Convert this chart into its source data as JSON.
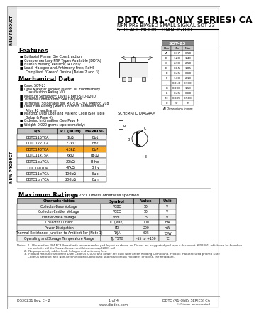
{
  "title_main": "DDTC (R1-ONLY SERIES) CA",
  "title_sub1": "NPN PRE-BIASED SMALL SIGNAL SOT-23",
  "title_sub2": "SURFACE MOUNT TRANSISTOR",
  "bg_color": "#ffffff",
  "side_label": "NEW PRODUCT",
  "features_title": "Features",
  "features": [
    "Epitaxial Planar Die Construction",
    "Complementary PNP Types Available (DDTA)",
    "Built-In Biasing Resistor, R1 only",
    "Lead, Halogen and Antimony Free; RoHS\n    Compliant \"Green\" Device (Notes 2 and 3)"
  ],
  "mech_title": "Mechanical Data",
  "mech_items": [
    "Case: SOT-23",
    "Case Material: Molded Plastic. UL Flammability\n    Classification Rating V-0",
    "Moisture Sensitivity: Level 1 per J-STD-020D",
    "Terminal Connections: See Diagram",
    "Terminals: Solderable per MIL-STD-202, Method 208",
    "Lead Free Plating (Matte Tin Finish annealed over\n    Alloy 42 leadframe)",
    "Marking: Date Code and Marking Code (See Table\n    Below & Page 4)",
    "Ordering Information (See Page 4)",
    "Weight: 0.020 grams (approximately)"
  ],
  "table_headers": [
    "P/N",
    "R1 (NOM)",
    "MARKING"
  ],
  "table_rows": [
    [
      "DDTC115TCA",
      "1kΩ",
      "Bb1"
    ],
    [
      "DDTC122TCA",
      "2.2kΩ",
      "Bb2"
    ],
    [
      "DDTC143TCA",
      "4.3kΩ",
      "Bb7"
    ],
    [
      "DDTC11x75A",
      "6kΩ",
      "Bb12"
    ],
    [
      "DDTC1bu7CA",
      "20kΩ",
      "B hb"
    ],
    [
      "DDTC1au7QA",
      "47kΩ",
      "B hy"
    ],
    [
      "DDTC11b7CA",
      "100kΩ",
      "Bub"
    ],
    [
      "DDTC1uh7CA",
      "200kΩ",
      "Buh"
    ]
  ],
  "highlight_row": 2,
  "sot23_table_title": "SOT-23",
  "sot23_dims": [
    [
      "Dim",
      "Min",
      "Max"
    ],
    [
      "A",
      "0.37",
      "0.50"
    ],
    [
      "B",
      "1.20",
      "1.40"
    ],
    [
      "C",
      "2.10",
      "2.50"
    ],
    [
      "D",
      "0.65",
      "1.05"
    ],
    [
      "E",
      "0.45",
      "0.60"
    ],
    [
      "F",
      "1.70",
      "2.10"
    ],
    [
      "J",
      "0.013",
      "0.100"
    ],
    [
      "K",
      "0.900",
      "1.10"
    ],
    [
      "L",
      "0.45",
      "0.60"
    ],
    [
      "M",
      "0.085",
      "0.580"
    ],
    [
      "e",
      "5°",
      "8°"
    ]
  ],
  "note_dims": "All Dimensions in mm",
  "max_ratings_title": "Maximum Ratings",
  "max_ratings_note": "@TA = 25°C unless otherwise specified",
  "max_ratings_headers": [
    "Characteristics",
    "Symbol",
    "Value",
    "Unit"
  ],
  "max_ratings_rows": [
    [
      "Collector-Base Voltage",
      "VCBO",
      "50",
      "V"
    ],
    [
      "Collector-Emitter Voltage",
      "VCEO",
      "50",
      "V"
    ],
    [
      "Emitter-Base Voltage",
      "VEBO",
      "5",
      "V"
    ],
    [
      "Collector Current",
      "IC (Max)",
      "100",
      "mA"
    ],
    [
      "Power Dissipation",
      "PD",
      "200",
      "mW"
    ],
    [
      "Thermal Resistance: Junction to Ambient Per (Note 1)",
      "RθJA",
      "625",
      "°C/W"
    ],
    [
      "Operating and Storage Temperature Range",
      "TJ, TSTG",
      "-55 to +150",
      "°C"
    ]
  ],
  "notes_text": [
    "Notes:  1.  Mounted on FR4 PCB (board with recommended pad layout as shown on Diodes Inc. suggested pad layout document AP02001, which can be found on",
    "            our website at http://www.diodes.com/datasheets/ap02001.pdf",
    "        2.  No purposefully added lead, halogen and antimony free.",
    "        3.  Product manufactured with Date Code 05 (2005) and newer are built with Green Molding Compound. Product manufactured prior to Date",
    "            Code 05 are built with Non-Green Molding Compound and may contain Halogens or SbO3, the Retardant."
  ],
  "footer_page": "1 of 4",
  "footer_left": "DS30231 Rev. E - 2",
  "footer_mid": "www.diodes.com",
  "footer_right": "DDTC (R1-ONLY SERIES) CA\n© Diodes Incorporated"
}
